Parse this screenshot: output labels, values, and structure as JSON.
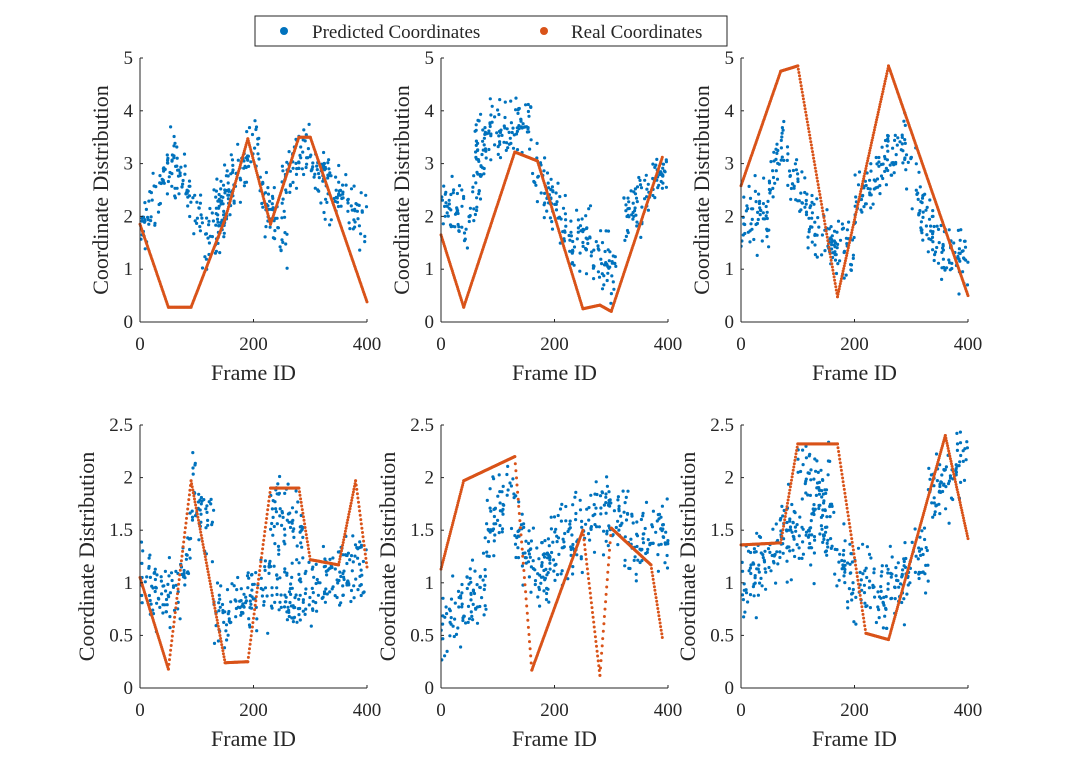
{
  "legend": {
    "predicted_label": "Predicted Coordinates",
    "real_label": "Real Coordinates",
    "predicted_color": "#0072BD",
    "real_color": "#D95319",
    "placement": "top-center"
  },
  "chart_data": [
    {
      "type": "scatter",
      "xlabel": "Frame ID",
      "ylabel": "Coordinate Distribution",
      "xlim": [
        0,
        400
      ],
      "ylim": [
        0,
        5
      ],
      "xticks": [
        0,
        200,
        400
      ],
      "yticks": [
        0,
        1,
        2,
        3,
        4,
        5
      ],
      "grid": false,
      "real": {
        "x": [
          0,
          50,
          90,
          150,
          190,
          230,
          280,
          300,
          400
        ],
        "y": [
          1.85,
          0.28,
          0.28,
          1.95,
          3.47,
          1.85,
          3.5,
          3.5,
          0.38
        ]
      },
      "predicted_segments": [
        {
          "x": [
            0,
            60
          ],
          "y": [
            1.6,
            3.2
          ]
        },
        {
          "x": [
            60,
            110
          ],
          "y": [
            3.0,
            1.9
          ]
        },
        {
          "x": [
            110,
            160
          ],
          "y": [
            1.3,
            2.3
          ]
        },
        {
          "x": [
            130,
            210
          ],
          "y": [
            2.1,
            3.5
          ]
        },
        {
          "x": [
            210,
            260
          ],
          "y": [
            2.6,
            1.6
          ]
        },
        {
          "x": [
            250,
            300
          ],
          "y": [
            2.7,
            3.4
          ]
        },
        {
          "x": [
            300,
            400
          ],
          "y": [
            2.9,
            1.9
          ]
        }
      ],
      "predicted_spread": 0.45
    },
    {
      "type": "scatter",
      "xlabel": "Frame ID",
      "ylabel": "Coordinate Distribution",
      "xlim": [
        0,
        400
      ],
      "ylim": [
        0,
        5
      ],
      "xticks": [
        0,
        200,
        400
      ],
      "yticks": [
        0,
        1,
        2,
        3,
        4,
        5
      ],
      "grid": false,
      "real": {
        "x": [
          0,
          40,
          130,
          170,
          250,
          280,
          300,
          390
        ],
        "y": [
          1.65,
          0.28,
          3.22,
          3.05,
          0.25,
          0.32,
          0.2,
          3.12
        ]
      },
      "predicted_segments": [
        {
          "x": [
            0,
            40
          ],
          "y": [
            2.2,
            2.0
          ]
        },
        {
          "x": [
            40,
            80
          ],
          "y": [
            1.6,
            3.2
          ]
        },
        {
          "x": [
            60,
            160
          ],
          "y": [
            3.5,
            3.8
          ]
        },
        {
          "x": [
            160,
            210
          ],
          "y": [
            3.0,
            2.0
          ]
        },
        {
          "x": [
            210,
            270
          ],
          "y": [
            1.7,
            1.5
          ]
        },
        {
          "x": [
            270,
            310
          ],
          "y": [
            1.2,
            1.0
          ]
        },
        {
          "x": [
            320,
            400
          ],
          "y": [
            1.9,
            3.0
          ]
        }
      ],
      "predicted_spread": 0.4
    },
    {
      "type": "scatter",
      "xlabel": "Frame ID",
      "ylabel": "Coordinate Distribution",
      "xlim": [
        0,
        400
      ],
      "ylim": [
        0,
        5
      ],
      "xticks": [
        0,
        200,
        400
      ],
      "yticks": [
        0,
        1,
        2,
        3,
        4,
        5
      ],
      "grid": false,
      "real": {
        "x": [
          0,
          70,
          100,
          170,
          260,
          400
        ],
        "y": [
          2.58,
          4.75,
          4.85,
          0.48,
          4.85,
          0.5
        ]
      },
      "predicted_segments": [
        {
          "x": [
            0,
            50
          ],
          "y": [
            2.0,
            2.0
          ]
        },
        {
          "x": [
            50,
            80
          ],
          "y": [
            2.4,
            3.8
          ]
        },
        {
          "x": [
            80,
            140
          ],
          "y": [
            3.0,
            1.6
          ]
        },
        {
          "x": [
            140,
            200
          ],
          "y": [
            1.5,
            1.3
          ]
        },
        {
          "x": [
            200,
            290
          ],
          "y": [
            2.2,
            3.5
          ]
        },
        {
          "x": [
            290,
            340
          ],
          "y": [
            3.1,
            1.6
          ]
        },
        {
          "x": [
            340,
            400
          ],
          "y": [
            1.4,
            1.2
          ]
        }
      ],
      "predicted_spread": 0.45
    },
    {
      "type": "scatter",
      "xlabel": "Frame ID",
      "ylabel": "Coordinate Distribution",
      "xlim": [
        0,
        400
      ],
      "ylim": [
        0,
        2.5
      ],
      "xticks": [
        0,
        200,
        400
      ],
      "yticks": [
        0,
        0.5,
        1,
        1.5,
        2,
        2.5
      ],
      "grid": false,
      "real": {
        "x": [
          0,
          50,
          90,
          150,
          190,
          230,
          280,
          300,
          350,
          380,
          400
        ],
        "y": [
          1.05,
          0.18,
          1.97,
          0.24,
          0.25,
          1.9,
          1.9,
          1.22,
          1.17,
          1.97,
          1.15
        ]
      },
      "predicted_segments": [
        {
          "x": [
            0,
            60
          ],
          "y": [
            1.1,
            0.75
          ]
        },
        {
          "x": [
            60,
            90
          ],
          "y": [
            0.7,
            1.5
          ]
        },
        {
          "x": [
            90,
            130
          ],
          "y": [
            1.9,
            1.5
          ]
        },
        {
          "x": [
            130,
            210
          ],
          "y": [
            0.7,
            0.8
          ]
        },
        {
          "x": [
            210,
            290
          ],
          "y": [
            1.0,
            0.8
          ]
        },
        {
          "x": [
            230,
            290
          ],
          "y": [
            1.7,
            1.5
          ]
        },
        {
          "x": [
            290,
            400
          ],
          "y": [
            0.9,
            1.2
          ]
        }
      ],
      "predicted_spread": 0.25
    },
    {
      "type": "scatter",
      "xlabel": "Frame ID",
      "ylabel": "Coordinate Distribution",
      "xlim": [
        0,
        400
      ],
      "ylim": [
        0,
        2.5
      ],
      "xticks": [
        0,
        200,
        400
      ],
      "yticks": [
        0,
        0.5,
        1,
        1.5,
        2,
        2.5
      ],
      "grid": false,
      "real": {
        "x": [
          0,
          40,
          130,
          160,
          250,
          280,
          300,
          370,
          390
        ],
        "y": [
          1.13,
          1.97,
          2.2,
          0.17,
          1.5,
          0.12,
          1.52,
          1.17,
          0.48
        ]
      },
      "predicted_segments": [
        {
          "x": [
            0,
            80
          ],
          "y": [
            0.6,
            1.0
          ]
        },
        {
          "x": [
            80,
            130
          ],
          "y": [
            1.5,
            2.0
          ]
        },
        {
          "x": [
            130,
            190
          ],
          "y": [
            1.5,
            1.0
          ]
        },
        {
          "x": [
            170,
            260
          ],
          "y": [
            1.1,
            1.6
          ]
        },
        {
          "x": [
            260,
            330
          ],
          "y": [
            1.7,
            1.6
          ]
        },
        {
          "x": [
            330,
            400
          ],
          "y": [
            1.3,
            1.5
          ]
        }
      ],
      "predicted_spread": 0.28
    },
    {
      "type": "scatter",
      "xlabel": "Frame ID",
      "ylabel": "Coordinate Distribution",
      "xlim": [
        0,
        400
      ],
      "ylim": [
        0,
        2.5
      ],
      "xticks": [
        0,
        200,
        400
      ],
      "yticks": [
        0,
        0.5,
        1,
        1.5,
        2,
        2.5
      ],
      "grid": false,
      "real": {
        "x": [
          0,
          70,
          100,
          170,
          220,
          260,
          360,
          400
        ],
        "y": [
          1.36,
          1.38,
          2.32,
          2.32,
          0.52,
          0.46,
          2.4,
          1.42
        ]
      },
      "predicted_segments": [
        {
          "x": [
            0,
            70
          ],
          "y": [
            1.0,
            1.4
          ]
        },
        {
          "x": [
            70,
            170
          ],
          "y": [
            1.5,
            1.4
          ]
        },
        {
          "x": [
            100,
            160
          ],
          "y": [
            2.0,
            1.8
          ]
        },
        {
          "x": [
            170,
            260
          ],
          "y": [
            1.2,
            0.8
          ]
        },
        {
          "x": [
            260,
            330
          ],
          "y": [
            0.9,
            1.3
          ]
        },
        {
          "x": [
            330,
            400
          ],
          "y": [
            1.8,
            2.2
          ]
        }
      ],
      "predicted_spread": 0.3
    }
  ]
}
